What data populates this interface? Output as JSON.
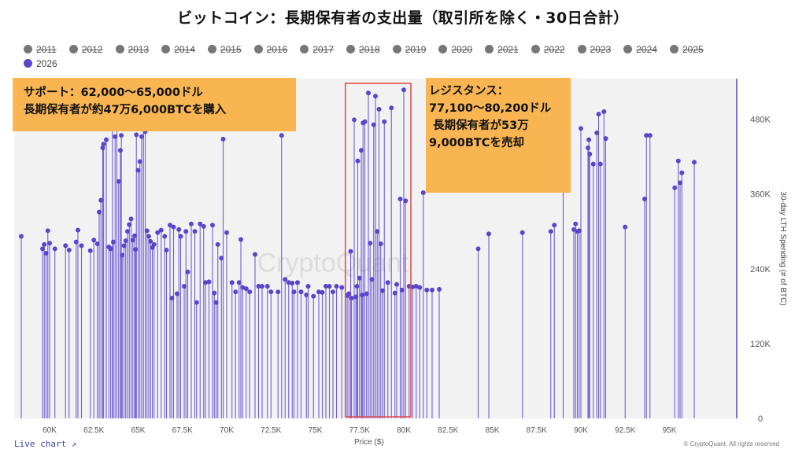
{
  "title": "ビットコイン：長期保有者の支出量（取引所を除く・30日合計）",
  "legend": {
    "items": [
      {
        "label": "2011",
        "active": false
      },
      {
        "label": "2012",
        "active": false
      },
      {
        "label": "2013",
        "active": false
      },
      {
        "label": "2014",
        "active": false
      },
      {
        "label": "2015",
        "active": false
      },
      {
        "label": "2016",
        "active": false
      },
      {
        "label": "2017",
        "active": false
      },
      {
        "label": "2018",
        "active": false
      },
      {
        "label": "2019",
        "active": false
      },
      {
        "label": "2020",
        "active": false
      },
      {
        "label": "2021",
        "active": false
      },
      {
        "label": "2022",
        "active": false
      },
      {
        "label": "2023",
        "active": false
      },
      {
        "label": "2024",
        "active": false
      },
      {
        "label": "2025",
        "active": false
      },
      {
        "label": "2026",
        "active": true
      }
    ]
  },
  "callouts": {
    "support_line1": "サポート：62,000〜65,000ドル",
    "support_line2": "長期保有者が約47万6,000BTCを購入",
    "resist_line1": "レジスタンス：",
    "resist_line2": "77,100〜80,200ドル",
    "resist_line3": " 長期保有者が53万",
    "resist_line4": "9,000BTCを売却"
  },
  "footer": {
    "live_chart": "Live chart ↗",
    "copyright": "© CryptoQuant. All rights reserved",
    "watermark": "CryptoQuant"
  },
  "colors": {
    "series": "#5b45cc",
    "highlight_box": "#e05050",
    "callout_bg": "#f8b552",
    "plot_bg": "#f2f2f2"
  },
  "chart_data": {
    "type": "scatter",
    "style": "lollipop",
    "xlabel": "Price ($)",
    "ylabel": "30-day LTH Spending (# of BTC)",
    "xlim": [
      58000,
      98800
    ],
    "ylim": [
      0,
      545000
    ],
    "x_ticks": [
      60000,
      62500,
      65000,
      67500,
      70000,
      72500,
      75000,
      77500,
      80000,
      82500,
      85000,
      87500,
      90000,
      92500,
      95000
    ],
    "x_tick_labels": [
      "60K",
      "62.5K",
      "65K",
      "67.5K",
      "70K",
      "72.5K",
      "75K",
      "77.5K",
      "80K",
      "82.5K",
      "85K",
      "87.5K",
      "90K",
      "92.5K",
      "95K"
    ],
    "y_ticks": [
      0,
      120000,
      240000,
      360000,
      480000
    ],
    "y_tick_labels": [
      "0",
      "120K",
      "240K",
      "360K",
      "480K"
    ],
    "y_axis_side": "right",
    "highlight_range": {
      "x": [
        76700,
        80400
      ],
      "y": [
        0,
        560000
      ]
    },
    "series": [
      {
        "points": [
          [
            58400,
            292000
          ],
          [
            59600,
            272000
          ],
          [
            59700,
            279000
          ],
          [
            59800,
            265000
          ],
          [
            59900,
            301000
          ],
          [
            60000,
            281000
          ],
          [
            60300,
            272000
          ],
          [
            60900,
            277000
          ],
          [
            61100,
            270000
          ],
          [
            61500,
            283000
          ],
          [
            61600,
            302000
          ],
          [
            61800,
            277000
          ],
          [
            62300,
            269000
          ],
          [
            62500,
            286000
          ],
          [
            62700,
            280000
          ],
          [
            62800,
            331000
          ],
          [
            62900,
            350000
          ],
          [
            63000,
            434000
          ],
          [
            63050,
            440000
          ],
          [
            63200,
            447000
          ],
          [
            63350,
            275000
          ],
          [
            63450,
            272000
          ],
          [
            63550,
            469000
          ],
          [
            63600,
            283000
          ],
          [
            63700,
            452000
          ],
          [
            63800,
            470000
          ],
          [
            63900,
            380000
          ],
          [
            64000,
            430000
          ],
          [
            64050,
            454000
          ],
          [
            64100,
            262000
          ],
          [
            64200,
            277000
          ],
          [
            64300,
            285000
          ],
          [
            64400,
            300000
          ],
          [
            64500,
            311000
          ],
          [
            64600,
            320000
          ],
          [
            64700,
            286000
          ],
          [
            64800,
            293000
          ],
          [
            64850,
            271000
          ],
          [
            64900,
            455000
          ],
          [
            65000,
            398000
          ],
          [
            65100,
            412000
          ],
          [
            65200,
            452000
          ],
          [
            65300,
            467000
          ],
          [
            65400,
            460000
          ],
          [
            65500,
            301000
          ],
          [
            65600,
            292000
          ],
          [
            65700,
            284000
          ],
          [
            65800,
            274000
          ],
          [
            65900,
            279000
          ],
          [
            66100,
            298000
          ],
          [
            66300,
            302000
          ],
          [
            66500,
            292000
          ],
          [
            66600,
            270000
          ],
          [
            66800,
            310000
          ],
          [
            66900,
            193000
          ],
          [
            67000,
            307000
          ],
          [
            67200,
            200000
          ],
          [
            67300,
            303000
          ],
          [
            67400,
            292000
          ],
          [
            67600,
            212000
          ],
          [
            67700,
            300000
          ],
          [
            67800,
            235000
          ],
          [
            68000,
            312000
          ],
          [
            68200,
            300000
          ],
          [
            68300,
            186000
          ],
          [
            68500,
            312000
          ],
          [
            68700,
            308000
          ],
          [
            68800,
            218000
          ],
          [
            69000,
            219000
          ],
          [
            69200,
            310000
          ],
          [
            69300,
            201000
          ],
          [
            69400,
            186000
          ],
          [
            69500,
            279000
          ],
          [
            69700,
            257000
          ],
          [
            69800,
            448000
          ],
          [
            70000,
            298000
          ],
          [
            70300,
            218000
          ],
          [
            70500,
            203000
          ],
          [
            70700,
            218000
          ],
          [
            70800,
            287000
          ],
          [
            70900,
            210000
          ],
          [
            71100,
            208000
          ],
          [
            71300,
            203000
          ],
          [
            71600,
            263000
          ],
          [
            71800,
            212000
          ],
          [
            72000,
            212000
          ],
          [
            72300,
            212000
          ],
          [
            72500,
            203000
          ],
          [
            72900,
            203000
          ],
          [
            73100,
            454000
          ],
          [
            73300,
            223000
          ],
          [
            73500,
            218000
          ],
          [
            73700,
            217000
          ],
          [
            73800,
            203000
          ],
          [
            74000,
            218000
          ],
          [
            74200,
            203000
          ],
          [
            74500,
            198000
          ],
          [
            74600,
            212000
          ],
          [
            74900,
            196000
          ],
          [
            75200,
            203000
          ],
          [
            75400,
            202000
          ],
          [
            75600,
            212000
          ],
          [
            75800,
            212000
          ],
          [
            76000,
            203000
          ],
          [
            76200,
            212000
          ],
          [
            76500,
            210000
          ],
          [
            76800,
            197000
          ],
          [
            76900,
            200000
          ],
          [
            77000,
            268000
          ],
          [
            77050,
            193000
          ],
          [
            77200,
            479000
          ],
          [
            77300,
            195000
          ],
          [
            77350,
            212000
          ],
          [
            77400,
            413000
          ],
          [
            77500,
            225000
          ],
          [
            77600,
            430000
          ],
          [
            77650,
            198000
          ],
          [
            77700,
            474000
          ],
          [
            77800,
            476000
          ],
          [
            77900,
            200000
          ],
          [
            78000,
            522000
          ],
          [
            78100,
            281000
          ],
          [
            78200,
            223000
          ],
          [
            78300,
            471000
          ],
          [
            78400,
            517000
          ],
          [
            78500,
            300000
          ],
          [
            78600,
            496000
          ],
          [
            78700,
            280000
          ],
          [
            78800,
            205000
          ],
          [
            78900,
            476000
          ],
          [
            79100,
            218000
          ],
          [
            79300,
            498000
          ],
          [
            79500,
            201000
          ],
          [
            79600,
            215000
          ],
          [
            79800,
            352000
          ],
          [
            79900,
            206000
          ],
          [
            80000,
            527000
          ],
          [
            80100,
            349000
          ],
          [
            80300,
            212000
          ],
          [
            80500,
            211000
          ],
          [
            80700,
            212000
          ],
          [
            80900,
            210000
          ],
          [
            81100,
            362000
          ],
          [
            81300,
            206000
          ],
          [
            81600,
            206000
          ],
          [
            82000,
            207000
          ],
          [
            84200,
            272000
          ],
          [
            84800,
            296000
          ],
          [
            86700,
            298000
          ],
          [
            88300,
            300000
          ],
          [
            88500,
            310000
          ],
          [
            89000,
            497000
          ],
          [
            89600,
            303000
          ],
          [
            89700,
            312000
          ],
          [
            89800,
            300000
          ],
          [
            89900,
            301000
          ],
          [
            90000,
            465000
          ],
          [
            90400,
            434000
          ],
          [
            90450,
            447000
          ],
          [
            90500,
            424000
          ],
          [
            90700,
            408000
          ],
          [
            90900,
            458000
          ],
          [
            91000,
            488000
          ],
          [
            91100,
            408000
          ],
          [
            91300,
            492000
          ],
          [
            91400,
            449000
          ],
          [
            92500,
            307000
          ],
          [
            93600,
            352000
          ],
          [
            93700,
            454000
          ],
          [
            93900,
            454000
          ],
          [
            95300,
            370000
          ],
          [
            95500,
            413000
          ],
          [
            95600,
            378000
          ],
          [
            95700,
            394000
          ],
          [
            96400,
            411000
          ]
        ]
      }
    ]
  }
}
